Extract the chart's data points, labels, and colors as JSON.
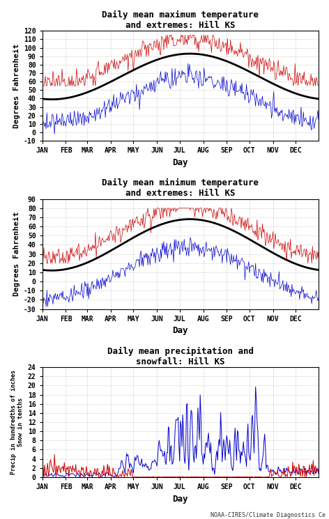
{
  "title1": "Daily mean maximum temperature\nand extremes: Hill KS",
  "title2": "Daily mean minimum temperature\nand extremes: Hill KS",
  "title3": "Daily mean precipitation and\nsnowfall: Hill KS",
  "ylabel1": "Degrees Fahrenheit",
  "ylabel2": "Degrees Fahrenheit",
  "ylabel3": "Precip in hundredths of inches\nSnow in tenths",
  "xlabel": "Day",
  "credit": "NOAA-CIRES/Climate Diagnostics Ce",
  "ylim1": [
    -10,
    120
  ],
  "ylim2": [
    -30,
    90
  ],
  "ylim3": [
    0,
    24
  ],
  "yticks1": [
    -10,
    0,
    10,
    20,
    30,
    40,
    50,
    60,
    70,
    80,
    90,
    100,
    110,
    120
  ],
  "yticks2": [
    -30,
    -20,
    -10,
    0,
    10,
    20,
    30,
    40,
    50,
    60,
    70,
    80,
    90
  ],
  "yticks3": [
    0,
    2,
    4,
    6,
    8,
    10,
    12,
    14,
    16,
    18,
    20,
    22,
    24
  ],
  "month_labels": [
    "JAN",
    "FEB",
    "MAR",
    "APR",
    "MAY",
    "JUN",
    "JUL",
    "AUG",
    "SEP",
    "OCT",
    "NOV",
    "DEC"
  ],
  "bg_color": "#ffffff",
  "fig_color": "#ffffff",
  "line_color_red": "#cc0000",
  "line_color_blue": "#0000cc",
  "line_color_black": "#000000",
  "grid_color": "#aaaaaa",
  "title_fontsize": 9,
  "label_fontsize": 8,
  "tick_fontsize": 7,
  "credit_fontsize": 6
}
